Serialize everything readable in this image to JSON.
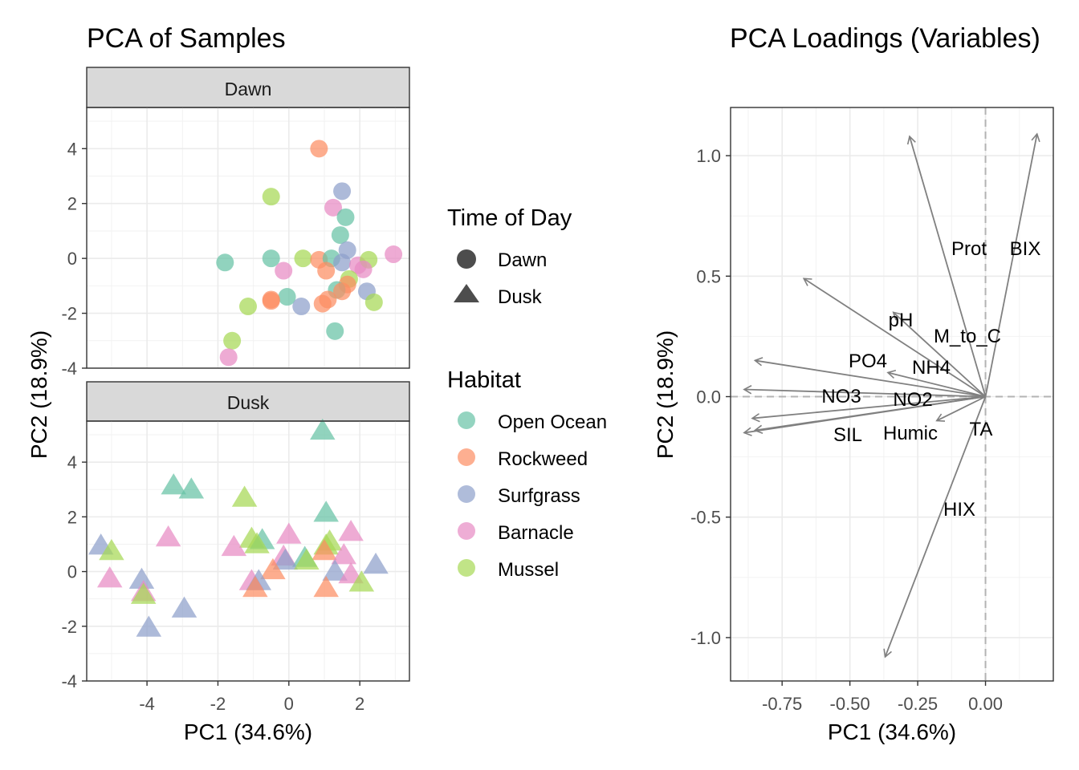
{
  "chart_data": [
    {
      "type": "scatter",
      "title": "PCA of Samples",
      "xlabel": "PC1 (34.6%)",
      "ylabel": "PC2 (18.9%)",
      "xlim": [
        -5.7,
        3.4
      ],
      "ylim": [
        -4,
        5.5
      ],
      "x_ticks": [
        "-4",
        "-2",
        "0",
        "2"
      ],
      "y_ticks": [
        "-4",
        "-2",
        "0",
        "2",
        "4"
      ],
      "facets": [
        "Dawn",
        "Dusk"
      ],
      "grid": true,
      "habitat_colors": {
        "Open Ocean": "#66c2a5",
        "Rockweed": "#fc8d62",
        "Surfgrass": "#8da0cb",
        "Barnacle": "#e78ac3",
        "Mussel": "#a6d854"
      },
      "points": [
        {
          "facet": "Dawn",
          "habitat": "Rockweed",
          "x": 0.85,
          "y": 4.0
        },
        {
          "facet": "Dawn",
          "habitat": "Mussel",
          "x": -0.5,
          "y": 2.25
        },
        {
          "facet": "Dawn",
          "habitat": "Surfgrass",
          "x": 1.5,
          "y": 2.45
        },
        {
          "facet": "Dawn",
          "habitat": "Barnacle",
          "x": 1.25,
          "y": 1.85
        },
        {
          "facet": "Dawn",
          "habitat": "Open Ocean",
          "x": 1.6,
          "y": 1.5
        },
        {
          "facet": "Dawn",
          "habitat": "Open Ocean",
          "x": 1.45,
          "y": 0.85
        },
        {
          "facet": "Dawn",
          "habitat": "Surfgrass",
          "x": 1.65,
          "y": 0.3
        },
        {
          "facet": "Dawn",
          "habitat": "Barnacle",
          "x": 2.95,
          "y": 0.15
        },
        {
          "facet": "Dawn",
          "habitat": "Open Ocean",
          "x": -1.8,
          "y": -0.15
        },
        {
          "facet": "Dawn",
          "habitat": "Open Ocean",
          "x": -0.5,
          "y": 0.0
        },
        {
          "facet": "Dawn",
          "habitat": "Mussel",
          "x": 0.4,
          "y": 0.0
        },
        {
          "facet": "Dawn",
          "habitat": "Rockweed",
          "x": 0.85,
          "y": -0.05
        },
        {
          "facet": "Dawn",
          "habitat": "Open Ocean",
          "x": 1.2,
          "y": 0.0
        },
        {
          "facet": "Dawn",
          "habitat": "Surfgrass",
          "x": 1.5,
          "y": -0.15
        },
        {
          "facet": "Dawn",
          "habitat": "Barnacle",
          "x": 1.95,
          "y": -0.25
        },
        {
          "facet": "Dawn",
          "habitat": "Mussel",
          "x": 2.25,
          "y": -0.05
        },
        {
          "facet": "Dawn",
          "habitat": "Barnacle",
          "x": 2.1,
          "y": -0.4
        },
        {
          "facet": "Dawn",
          "habitat": "Rockweed",
          "x": 1.05,
          "y": -0.45
        },
        {
          "facet": "Dawn",
          "habitat": "Barnacle",
          "x": -0.15,
          "y": -0.45
        },
        {
          "facet": "Dawn",
          "habitat": "Mussel",
          "x": 1.7,
          "y": -0.75
        },
        {
          "facet": "Dawn",
          "habitat": "Rockweed",
          "x": 1.65,
          "y": -0.95
        },
        {
          "facet": "Dawn",
          "habitat": "Open Ocean",
          "x": 1.35,
          "y": -1.15
        },
        {
          "facet": "Dawn",
          "habitat": "Rockweed",
          "x": 1.5,
          "y": -1.2
        },
        {
          "facet": "Dawn",
          "habitat": "Surfgrass",
          "x": 2.2,
          "y": -1.2
        },
        {
          "facet": "Dawn",
          "habitat": "Open Ocean",
          "x": -0.05,
          "y": -1.4
        },
        {
          "facet": "Dawn",
          "habitat": "Rockweed",
          "x": -0.5,
          "y": -1.5
        },
        {
          "facet": "Dawn",
          "habitat": "Rockweed",
          "x": -0.5,
          "y": -1.55
        },
        {
          "facet": "Dawn",
          "habitat": "Rockweed",
          "x": 1.1,
          "y": -1.5
        },
        {
          "facet": "Dawn",
          "habitat": "Rockweed",
          "x": 0.95,
          "y": -1.65
        },
        {
          "facet": "Dawn",
          "habitat": "Mussel",
          "x": 2.4,
          "y": -1.6
        },
        {
          "facet": "Dawn",
          "habitat": "Mussel",
          "x": -1.15,
          "y": -1.75
        },
        {
          "facet": "Dawn",
          "habitat": "Surfgrass",
          "x": 0.35,
          "y": -1.75
        },
        {
          "facet": "Dawn",
          "habitat": "Open Ocean",
          "x": 1.3,
          "y": -2.65
        },
        {
          "facet": "Dawn",
          "habitat": "Mussel",
          "x": -1.6,
          "y": -3.0
        },
        {
          "facet": "Dawn",
          "habitat": "Barnacle",
          "x": -1.7,
          "y": -3.6
        },
        {
          "facet": "Dusk",
          "habitat": "Open Ocean",
          "x": 0.95,
          "y": 5.15
        },
        {
          "facet": "Dusk",
          "habitat": "Open Ocean",
          "x": -3.25,
          "y": 3.15
        },
        {
          "facet": "Dusk",
          "habitat": "Open Ocean",
          "x": -2.75,
          "y": 3.0
        },
        {
          "facet": "Dusk",
          "habitat": "Mussel",
          "x": -1.25,
          "y": 2.7
        },
        {
          "facet": "Dusk",
          "habitat": "Open Ocean",
          "x": 1.05,
          "y": 2.15
        },
        {
          "facet": "Dusk",
          "habitat": "Barnacle",
          "x": -3.4,
          "y": 1.25
        },
        {
          "facet": "Dusk",
          "habitat": "Barnacle",
          "x": 0.0,
          "y": 1.35
        },
        {
          "facet": "Dusk",
          "habitat": "Barnacle",
          "x": 1.75,
          "y": 1.45
        },
        {
          "facet": "Dusk",
          "habitat": "Mussel",
          "x": -1.05,
          "y": 1.2
        },
        {
          "facet": "Dusk",
          "habitat": "Open Ocean",
          "x": -0.75,
          "y": 1.15
        },
        {
          "facet": "Dusk",
          "habitat": "Mussel",
          "x": -0.9,
          "y": 1.0
        },
        {
          "facet": "Dusk",
          "habitat": "Mussel",
          "x": 1.15,
          "y": 1.1
        },
        {
          "facet": "Dusk",
          "habitat": "Mussel",
          "x": 1.05,
          "y": 0.95
        },
        {
          "facet": "Dusk",
          "habitat": "Surfgrass",
          "x": -5.3,
          "y": 0.95
        },
        {
          "facet": "Dusk",
          "habitat": "Mussel",
          "x": -5.0,
          "y": 0.75
        },
        {
          "facet": "Dusk",
          "habitat": "Barnacle",
          "x": -1.55,
          "y": 0.9
        },
        {
          "facet": "Dusk",
          "habitat": "Rockweed",
          "x": 1.0,
          "y": 0.75
        },
        {
          "facet": "Dusk",
          "habitat": "Barnacle",
          "x": 1.55,
          "y": 0.6
        },
        {
          "facet": "Dusk",
          "habitat": "Barnacle",
          "x": -0.15,
          "y": 0.55
        },
        {
          "facet": "Dusk",
          "habitat": "Open Ocean",
          "x": 0.45,
          "y": 0.5
        },
        {
          "facet": "Dusk",
          "habitat": "Surfgrass",
          "x": -0.1,
          "y": 0.4
        },
        {
          "facet": "Dusk",
          "habitat": "Mussel",
          "x": 0.5,
          "y": 0.4
        },
        {
          "facet": "Dusk",
          "habitat": "Surfgrass",
          "x": 2.45,
          "y": 0.25
        },
        {
          "facet": "Dusk",
          "habitat": "Rockweed",
          "x": -0.45,
          "y": 0.05
        },
        {
          "facet": "Dusk",
          "habitat": "Surfgrass",
          "x": 1.3,
          "y": 0.0
        },
        {
          "facet": "Dusk",
          "habitat": "Barnacle",
          "x": 1.75,
          "y": -0.1
        },
        {
          "facet": "Dusk",
          "habitat": "Barnacle",
          "x": -5.05,
          "y": -0.25
        },
        {
          "facet": "Dusk",
          "habitat": "Surfgrass",
          "x": -4.15,
          "y": -0.3
        },
        {
          "facet": "Dusk",
          "habitat": "Barnacle",
          "x": -1.05,
          "y": -0.35
        },
        {
          "facet": "Dusk",
          "habitat": "Surfgrass",
          "x": -0.85,
          "y": -0.35
        },
        {
          "facet": "Dusk",
          "habitat": "Mussel",
          "x": 2.05,
          "y": -0.4
        },
        {
          "facet": "Dusk",
          "habitat": "Rockweed",
          "x": -0.95,
          "y": -0.6
        },
        {
          "facet": "Dusk",
          "habitat": "Rockweed",
          "x": 1.05,
          "y": -0.6
        },
        {
          "facet": "Dusk",
          "habitat": "Barnacle",
          "x": -4.1,
          "y": -0.75
        },
        {
          "facet": "Dusk",
          "habitat": "Mussel",
          "x": -4.1,
          "y": -0.85
        },
        {
          "facet": "Dusk",
          "habitat": "Surfgrass",
          "x": -2.95,
          "y": -1.35
        },
        {
          "facet": "Dusk",
          "habitat": "Surfgrass",
          "x": -3.95,
          "y": -2.05
        }
      ]
    },
    {
      "type": "scatter",
      "subtype": "loadings-biplot",
      "title": "PCA Loadings (Variables)",
      "xlabel": "PC1 (34.6%)",
      "ylabel": "PC2 (18.9%)",
      "xlim": [
        -0.94,
        0.25
      ],
      "ylim": [
        -1.18,
        1.2
      ],
      "x_ticks": [
        "-0.75",
        "-0.50",
        "-0.25",
        "0.00"
      ],
      "y_ticks": [
        "-1.0",
        "-0.5",
        "0.0",
        "0.5",
        "1.0"
      ],
      "reference_lines": [
        0,
        0
      ],
      "grid": true,
      "vectors": [
        {
          "name": "Prot",
          "x": -0.28,
          "y": 1.08
        },
        {
          "name": "BIX",
          "x": 0.19,
          "y": 1.09
        },
        {
          "name": "pH",
          "x": -0.67,
          "y": 0.49
        },
        {
          "name": "M_to_C",
          "x": -0.34,
          "y": 0.35
        },
        {
          "name": "PO4",
          "x": -0.85,
          "y": 0.15
        },
        {
          "name": "NH4",
          "x": -0.36,
          "y": 0.1
        },
        {
          "name": "NO3",
          "x": -0.89,
          "y": 0.03
        },
        {
          "name": "NO2",
          "x": -0.86,
          "y": -0.09
        },
        {
          "name": "SIL",
          "x": -0.89,
          "y": -0.15
        },
        {
          "name": "Humic",
          "x": -0.85,
          "y": -0.14
        },
        {
          "name": "TA",
          "x": -0.18,
          "y": -0.1
        },
        {
          "name": "HIX",
          "x": -0.37,
          "y": -1.08
        }
      ]
    }
  ],
  "legend": {
    "shape_title": "Time of Day",
    "shapes": [
      {
        "label": "Dawn",
        "shape": "circle"
      },
      {
        "label": "Dusk",
        "shape": "triangle"
      }
    ],
    "color_title": "Habitat",
    "colors": [
      {
        "label": "Open Ocean",
        "color": "#66c2a5"
      },
      {
        "label": "Rockweed",
        "color": "#fc8d62"
      },
      {
        "label": "Surfgrass",
        "color": "#8da0cb"
      },
      {
        "label": "Barnacle",
        "color": "#e78ac3"
      },
      {
        "label": "Mussel",
        "color": "#a6d854"
      }
    ]
  }
}
